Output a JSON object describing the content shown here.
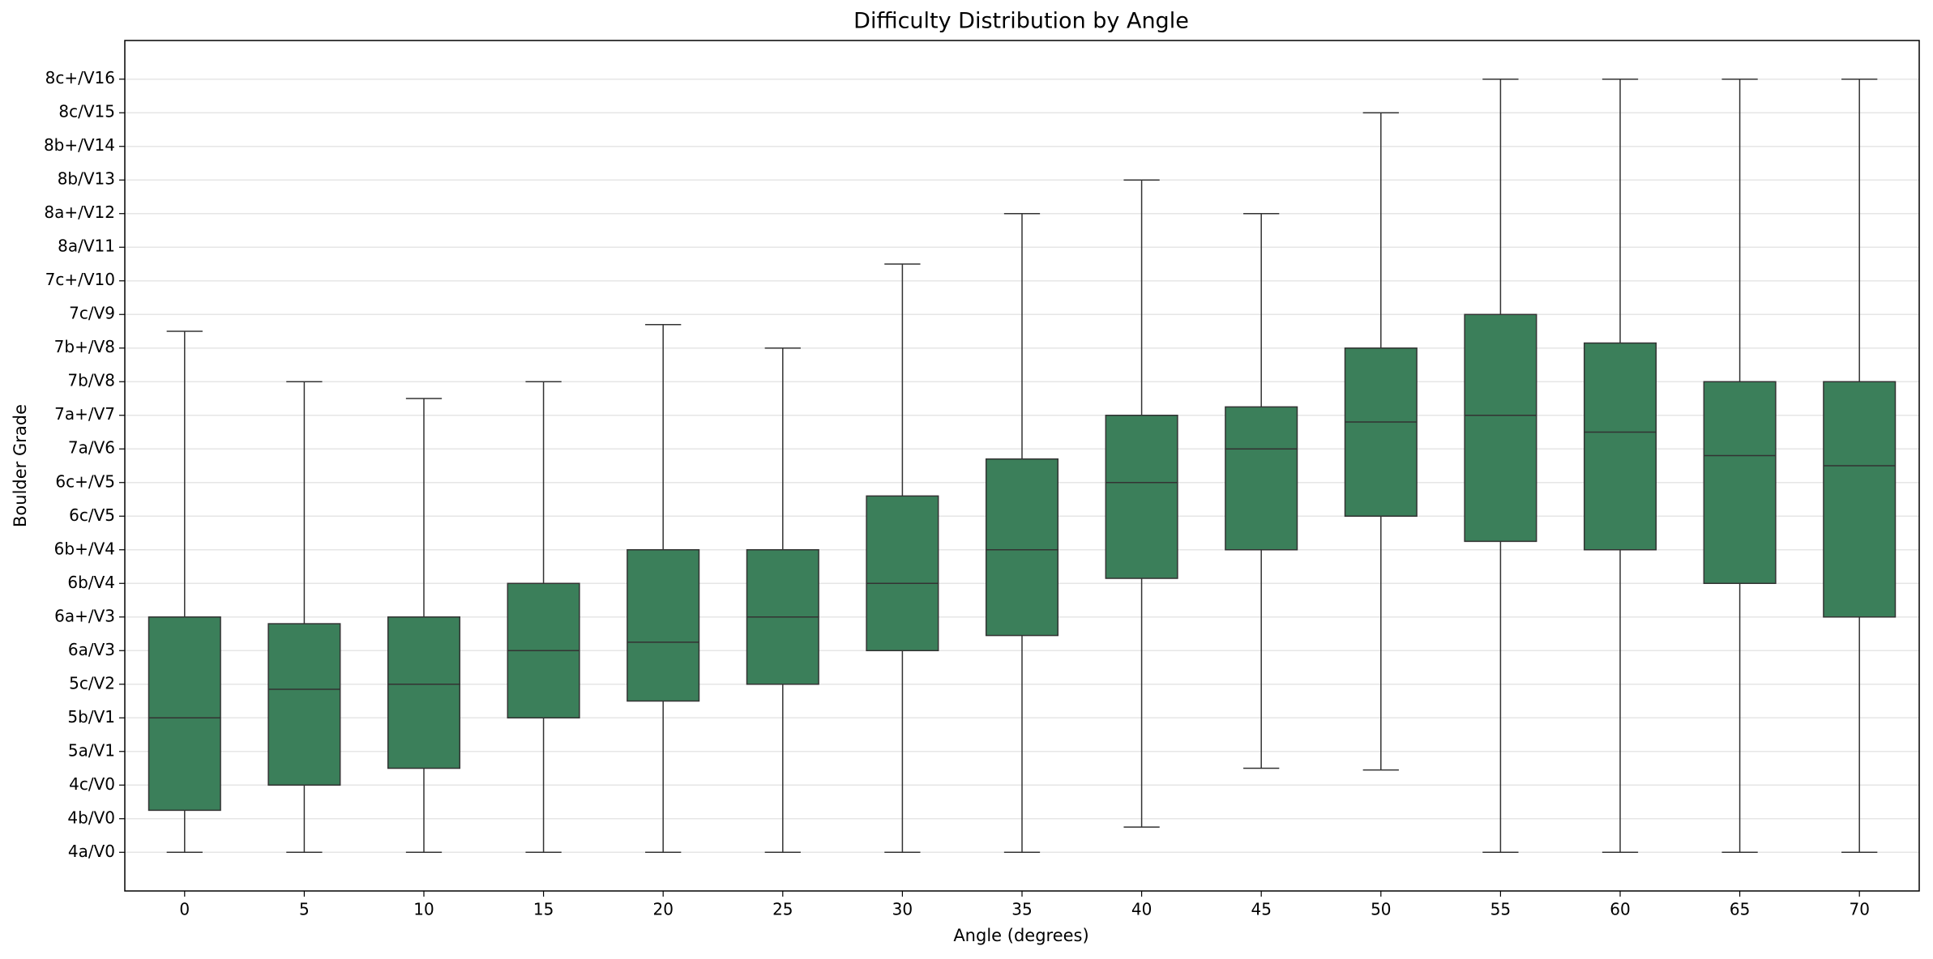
{
  "chart_data": {
    "type": "box",
    "title": "Difficulty Distribution by Angle",
    "x_label": "Angle (degrees)",
    "y_label": "Boulder Grade",
    "categories": [
      0,
      5,
      10,
      15,
      20,
      25,
      30,
      35,
      40,
      45,
      50,
      55,
      60,
      65,
      70
    ],
    "color": "#3b7f5a",
    "edge_color": "#333333",
    "min": [
      10,
      10,
      10,
      10,
      10,
      10,
      10,
      10,
      10.75,
      12.5,
      12.45,
      10,
      10,
      10,
      10
    ],
    "q1": [
      11.25,
      12,
      12.5,
      14,
      14.5,
      15,
      16,
      16.45,
      18.15,
      19,
      20,
      19.25,
      19,
      18,
      17
    ],
    "median": [
      14,
      14.85,
      15,
      16,
      16.25,
      17,
      18,
      19,
      21,
      22,
      22.8,
      23,
      22.5,
      21.8,
      21.5
    ],
    "q3": [
      17,
      16.8,
      17,
      18,
      19,
      19,
      20.6,
      21.7,
      23,
      23.25,
      25,
      26,
      25.15,
      24,
      24
    ],
    "max": [
      25.5,
      24,
      23.5,
      24,
      25.7,
      25,
      27.5,
      29,
      30,
      29,
      32,
      33,
      33,
      33,
      33
    ],
    "ylim": [
      8.85,
      34.15
    ],
    "yticks": [
      {
        "value": 10,
        "label": "4a/V0"
      },
      {
        "value": 11,
        "label": "4b/V0"
      },
      {
        "value": 12,
        "label": "4c/V0"
      },
      {
        "value": 13,
        "label": "5a/V1"
      },
      {
        "value": 14,
        "label": "5b/V1"
      },
      {
        "value": 15,
        "label": "5c/V2"
      },
      {
        "value": 16,
        "label": "6a/V3"
      },
      {
        "value": 17,
        "label": "6a+/V3"
      },
      {
        "value": 18,
        "label": "6b/V4"
      },
      {
        "value": 19,
        "label": "6b+/V4"
      },
      {
        "value": 20,
        "label": "6c/V5"
      },
      {
        "value": 21,
        "label": "6c+/V5"
      },
      {
        "value": 22,
        "label": "7a/V6"
      },
      {
        "value": 23,
        "label": "7a+/V7"
      },
      {
        "value": 24,
        "label": "7b/V8"
      },
      {
        "value": 25,
        "label": "7b+/V8"
      },
      {
        "value": 26,
        "label": "7c/V9"
      },
      {
        "value": 27,
        "label": "7c+/V10"
      },
      {
        "value": 28,
        "label": "8a/V11"
      },
      {
        "value": 29,
        "label": "8a+/V12"
      },
      {
        "value": 30,
        "label": "8b/V13"
      },
      {
        "value": 31,
        "label": "8b+/V14"
      },
      {
        "value": 32,
        "label": "8c/V15"
      },
      {
        "value": 33,
        "label": "8c+/V16"
      }
    ],
    "grid": true
  }
}
